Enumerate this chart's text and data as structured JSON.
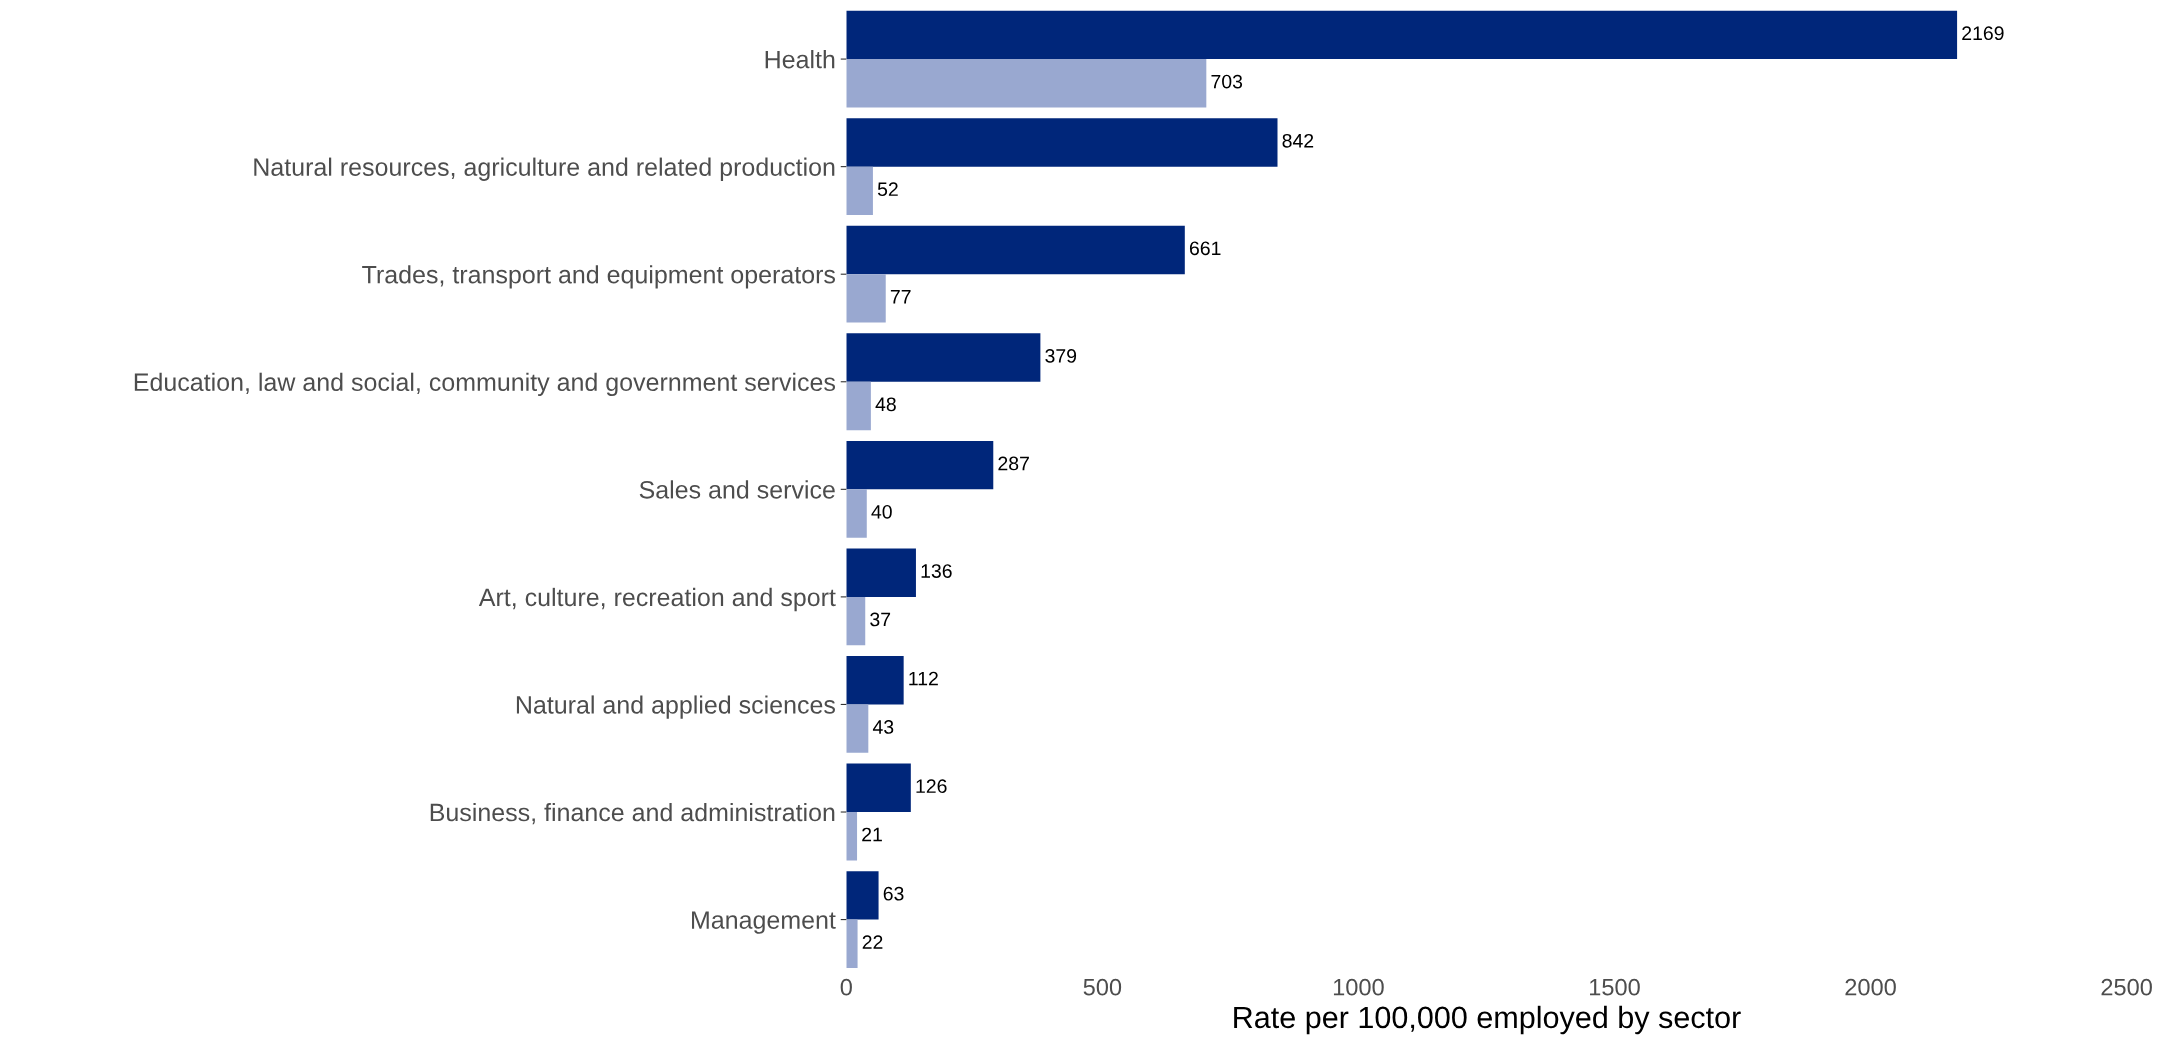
{
  "chart_data": {
    "type": "bar",
    "orientation": "horizontal",
    "xlabel": "Rate per 100,000 employed by sector",
    "categories": [
      "Health",
      "Natural resources, agriculture and related production",
      "Trades, transport and equipment operators",
      "Education, law and social, community and government services",
      "Sales and service",
      "Art, culture, recreation and sport",
      "Natural and applied sciences",
      "Business, finance and administration",
      "Management"
    ],
    "series": [
      {
        "color": "#00267a",
        "values": [
          2169,
          842,
          661,
          379,
          287,
          136,
          112,
          126,
          63
        ]
      },
      {
        "color": "#99a8d0",
        "values": [
          703,
          52,
          77,
          48,
          40,
          37,
          43,
          21,
          22
        ]
      }
    ],
    "xlim": [
      0,
      2500
    ],
    "xticks": [
      0,
      500,
      1000,
      1500,
      2000,
      2500
    ],
    "data_labels": true,
    "grid": false,
    "legend": false
  }
}
